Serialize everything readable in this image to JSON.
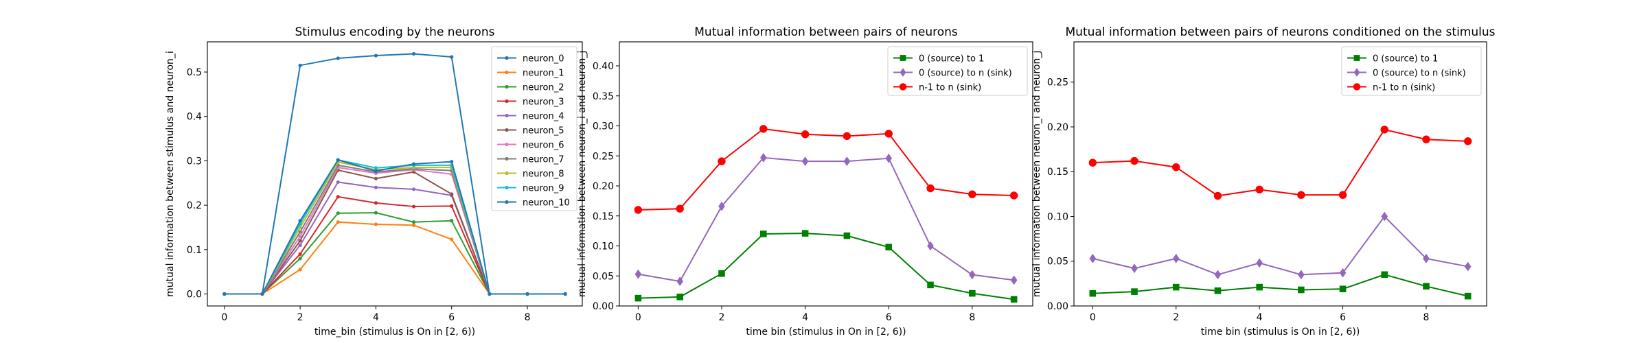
{
  "chart_data": [
    {
      "type": "line",
      "title": "Stimulus encoding by the neurons",
      "xlabel": "time_bin (stimulus is On in [2, 6))",
      "ylabel": "mutual information between stimulus and neuron_i",
      "xlim": [
        -0.45,
        9.45
      ],
      "ylim": [
        -0.027,
        0.568
      ],
      "xticks": [
        0,
        2,
        4,
        6,
        8
      ],
      "yticks": [
        0.0,
        0.1,
        0.2,
        0.3,
        0.4,
        0.5
      ],
      "ytick_labels": [
        "0.0",
        "0.1",
        "0.2",
        "0.3",
        "0.4",
        "0.5"
      ],
      "legend": "top-right",
      "grid": false,
      "x": [
        0,
        1,
        2,
        3,
        4,
        5,
        6,
        7,
        8,
        9
      ],
      "series": [
        {
          "name": "neuron_0",
          "color": "#1f77b4",
          "marker": "dot",
          "values": [
            0,
            0,
            0.515,
            0.531,
            0.537,
            0.541,
            0.534,
            0,
            0,
            0
          ]
        },
        {
          "name": "neuron_1",
          "color": "#ff7f0e",
          "marker": "dot",
          "values": [
            0,
            0,
            0.055,
            0.162,
            0.157,
            0.155,
            0.123,
            0,
            0,
            0
          ]
        },
        {
          "name": "neuron_2",
          "color": "#2ca02c",
          "marker": "dot",
          "values": [
            0,
            0,
            0.08,
            0.182,
            0.183,
            0.162,
            0.165,
            0,
            0,
            0
          ]
        },
        {
          "name": "neuron_3",
          "color": "#d62728",
          "marker": "dot",
          "values": [
            0,
            0,
            0.09,
            0.219,
            0.205,
            0.197,
            0.198,
            0,
            0,
            0
          ]
        },
        {
          "name": "neuron_4",
          "color": "#9467bd",
          "marker": "dot",
          "values": [
            0,
            0,
            0.11,
            0.252,
            0.24,
            0.236,
            0.222,
            0,
            0,
            0
          ]
        },
        {
          "name": "neuron_5",
          "color": "#8c564b",
          "marker": "dot",
          "values": [
            0,
            0,
            0.12,
            0.279,
            0.26,
            0.275,
            0.225,
            0,
            0,
            0
          ]
        },
        {
          "name": "neuron_6",
          "color": "#e377c2",
          "marker": "dot",
          "values": [
            0,
            0,
            0.13,
            0.285,
            0.272,
            0.28,
            0.27,
            0,
            0,
            0
          ]
        },
        {
          "name": "neuron_7",
          "color": "#7f7f7f",
          "marker": "dot",
          "values": [
            0,
            0,
            0.14,
            0.29,
            0.275,
            0.282,
            0.278,
            0,
            0,
            0
          ]
        },
        {
          "name": "neuron_8",
          "color": "#bcbd22",
          "marker": "dot",
          "values": [
            0,
            0,
            0.15,
            0.297,
            0.28,
            0.285,
            0.285,
            0,
            0,
            0
          ]
        },
        {
          "name": "neuron_9",
          "color": "#17becf",
          "marker": "dot",
          "values": [
            0,
            0,
            0.158,
            0.302,
            0.284,
            0.29,
            0.29,
            0,
            0,
            0
          ]
        },
        {
          "name": "neuron_10",
          "color": "#1f77b4",
          "marker": "dot",
          "values": [
            0,
            0,
            0.165,
            0.302,
            0.277,
            0.293,
            0.298,
            0,
            0,
            0
          ]
        }
      ]
    },
    {
      "type": "line",
      "title": "Mutual information between pairs of neurons",
      "xlabel": "time bin (stimulus in On in [2, 6))",
      "ylabel": "mutual information between neuron_i and neuron_j",
      "xlim": [
        -0.45,
        9.45
      ],
      "ylim": [
        0.0,
        0.44
      ],
      "xticks": [
        0,
        2,
        4,
        6,
        8
      ],
      "yticks": [
        0.0,
        0.05,
        0.1,
        0.15,
        0.2,
        0.25,
        0.3,
        0.35,
        0.4
      ],
      "ytick_labels": [
        "0.00",
        "0.05",
        "0.10",
        "0.15",
        "0.20",
        "0.25",
        "0.30",
        "0.35",
        "0.40"
      ],
      "legend": "top-right",
      "grid": false,
      "x": [
        0,
        1,
        2,
        3,
        4,
        5,
        6,
        7,
        8,
        9
      ],
      "series": [
        {
          "name": "0 (source) to 1",
          "color": "#008000",
          "marker": "square",
          "values": [
            0.013,
            0.015,
            0.054,
            0.12,
            0.121,
            0.117,
            0.098,
            0.035,
            0.021,
            0.011
          ]
        },
        {
          "name": "0 (source) to n (sink)",
          "color": "#9467bd",
          "marker": "diamond",
          "values": [
            0.053,
            0.041,
            0.166,
            0.247,
            0.241,
            0.241,
            0.246,
            0.1,
            0.052,
            0.043
          ]
        },
        {
          "name": "n-1 to n (sink)",
          "color": "#ff0000",
          "marker": "circle",
          "values": [
            0.16,
            0.162,
            0.241,
            0.295,
            0.286,
            0.283,
            0.287,
            0.196,
            0.186,
            0.184
          ]
        }
      ]
    },
    {
      "type": "line",
      "title": "Mutual information between pairs of neurons conditioned on the stimulus",
      "xlabel": "time bin (stimulus is On in [2, 6))",
      "ylabel": "mutual information between neuron_i and neuron_j",
      "xlim": [
        -0.45,
        9.45
      ],
      "ylim": [
        0.0,
        0.295
      ],
      "xticks": [
        0,
        2,
        4,
        6,
        8
      ],
      "yticks": [
        0.0,
        0.05,
        0.1,
        0.15,
        0.2,
        0.25
      ],
      "ytick_labels": [
        "0.00",
        "0.05",
        "0.10",
        "0.15",
        "0.20",
        "0.25"
      ],
      "legend": "top-right",
      "grid": false,
      "x": [
        0,
        1,
        2,
        3,
        4,
        5,
        6,
        7,
        8,
        9
      ],
      "series": [
        {
          "name": "0 (source) to 1",
          "color": "#008000",
          "marker": "square",
          "values": [
            0.014,
            0.016,
            0.021,
            0.017,
            0.021,
            0.018,
            0.019,
            0.035,
            0.022,
            0.011
          ]
        },
        {
          "name": "0 (source) to n (sink)",
          "color": "#9467bd",
          "marker": "diamond",
          "values": [
            0.053,
            0.042,
            0.053,
            0.035,
            0.048,
            0.035,
            0.037,
            0.1,
            0.053,
            0.044
          ]
        },
        {
          "name": "n-1 to n (sink)",
          "color": "#ff0000",
          "marker": "circle",
          "values": [
            0.16,
            0.162,
            0.155,
            0.123,
            0.13,
            0.124,
            0.124,
            0.197,
            0.186,
            0.184
          ]
        }
      ]
    }
  ]
}
